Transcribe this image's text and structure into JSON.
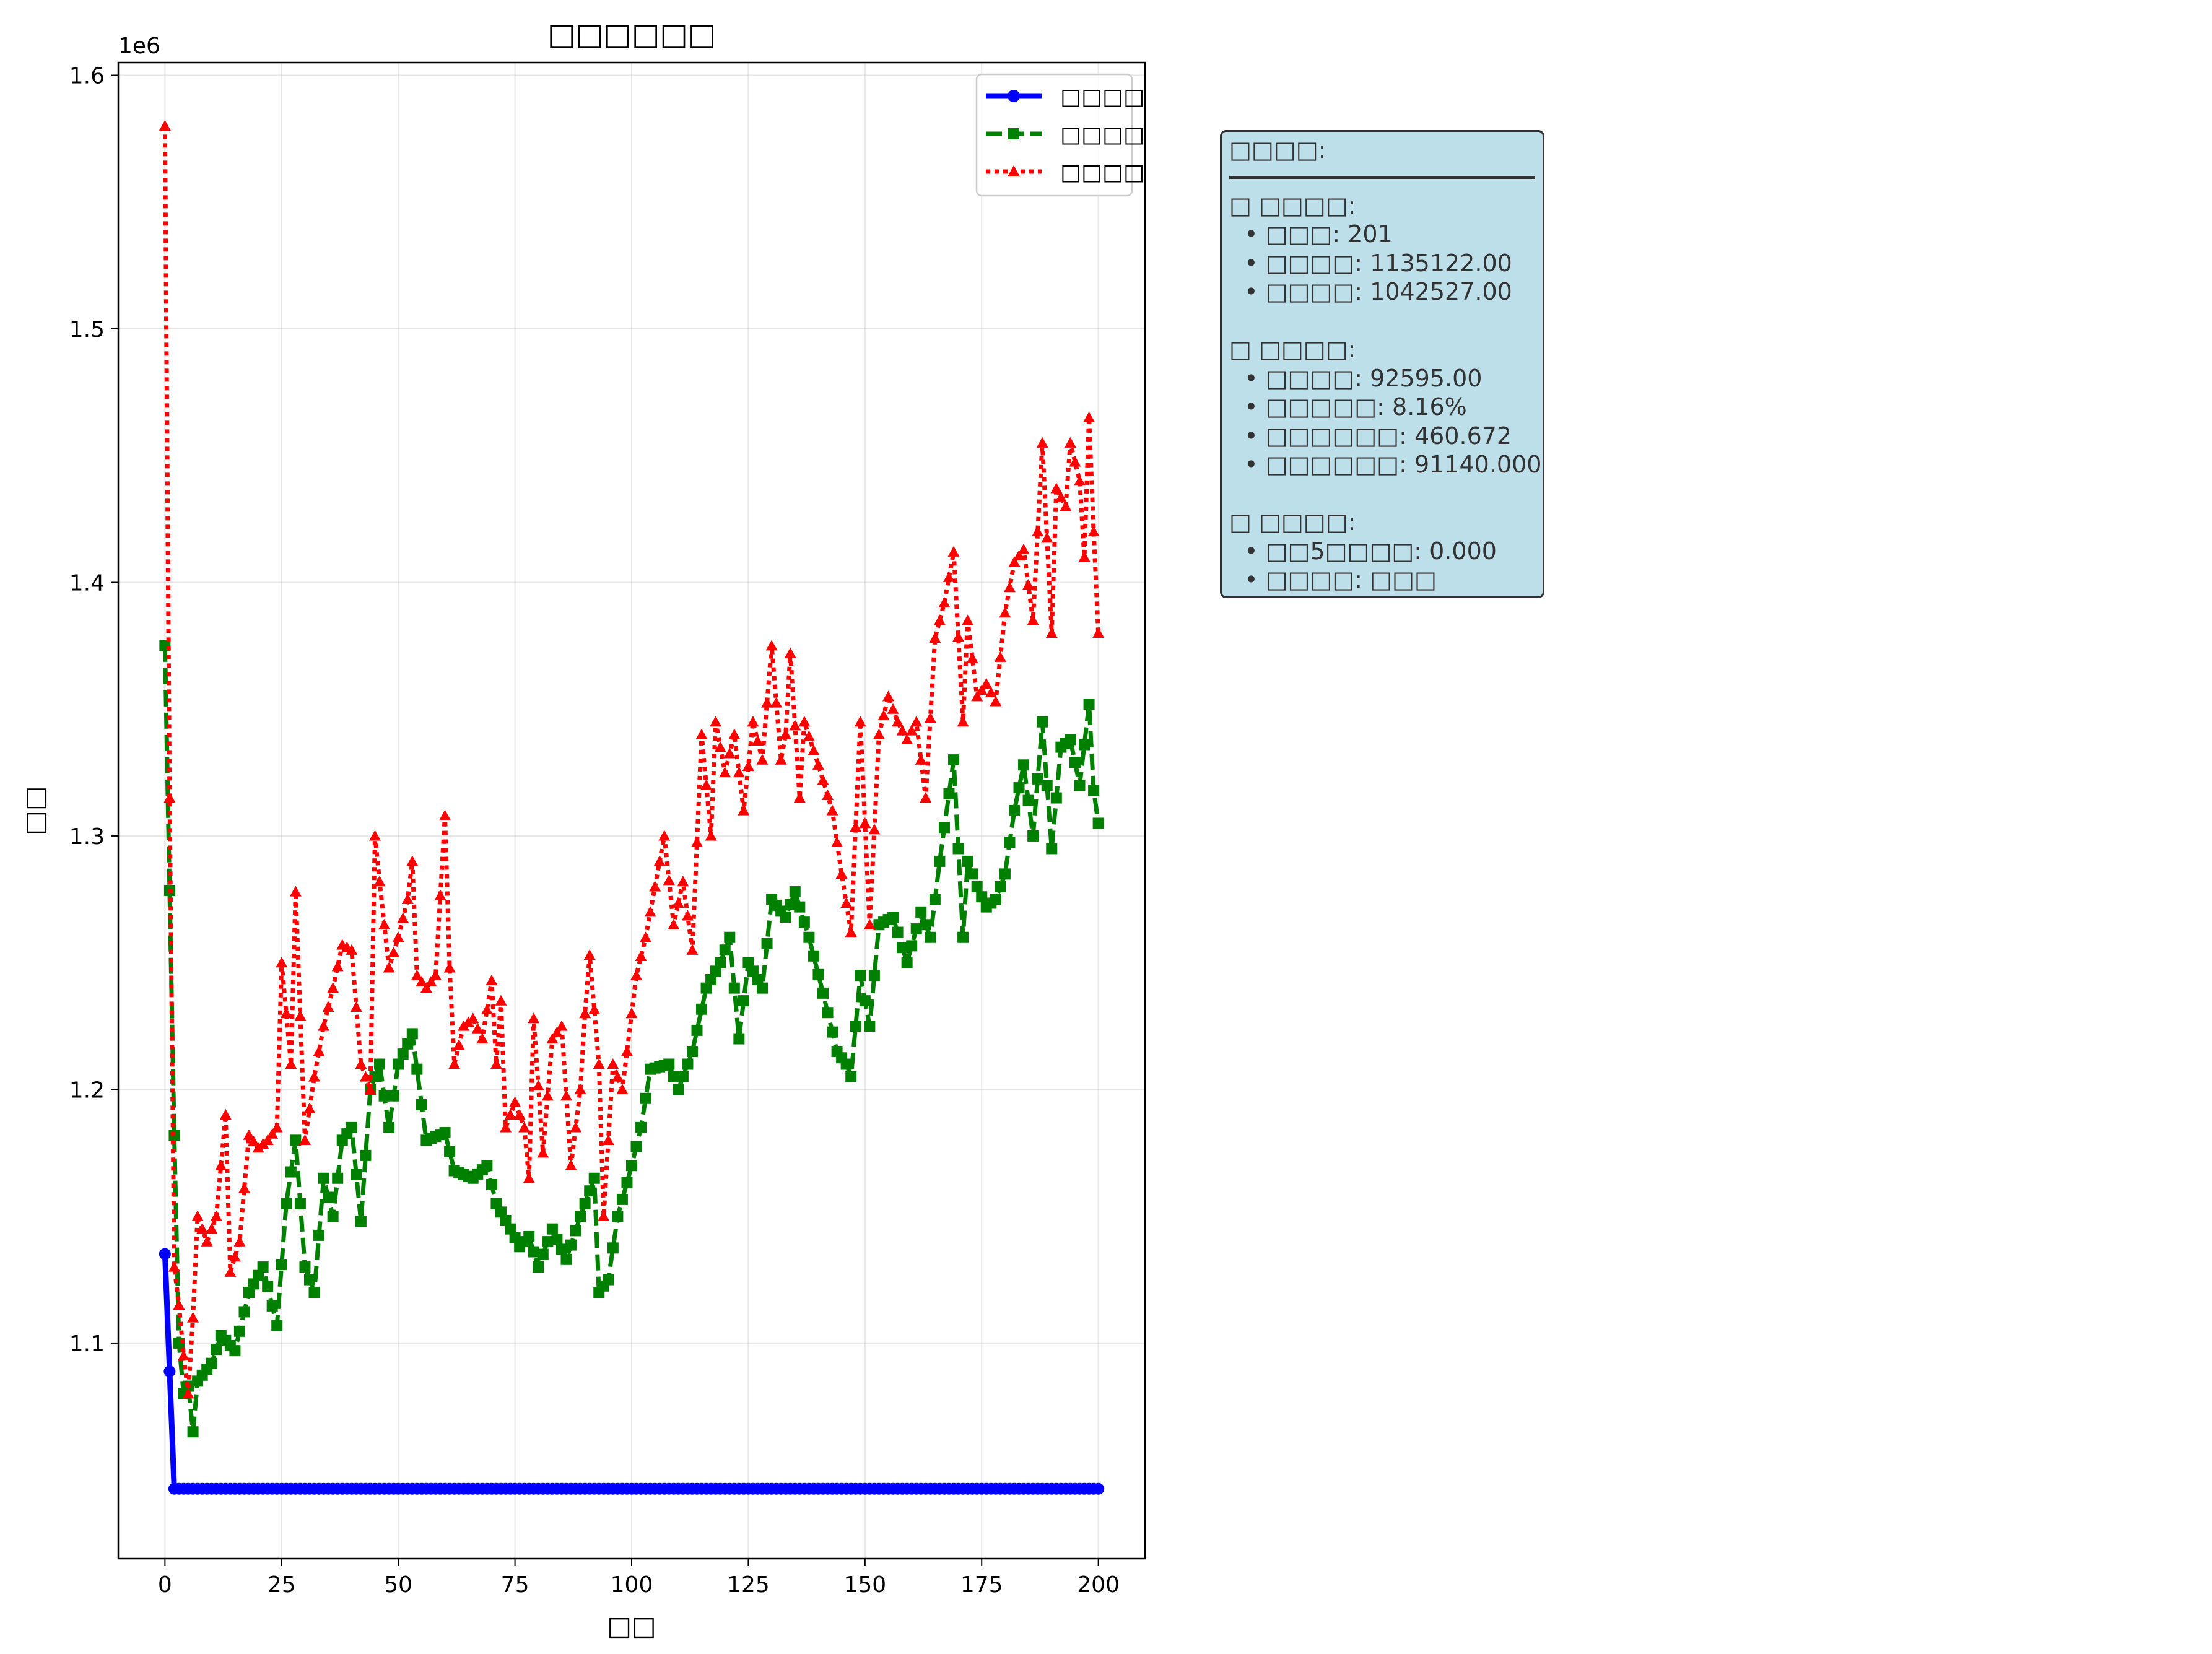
{
  "chart_data": {
    "type": "line",
    "title": "□□□□□□",
    "xlabel": "□□",
    "ylabel": "□□",
    "offset_text": "1e6",
    "xlim": [
      -10,
      210
    ],
    "ylim": [
      1015000,
      1605000
    ],
    "x_ticks": [
      0,
      25,
      50,
      75,
      100,
      125,
      150,
      175,
      200
    ],
    "x_tick_labels": [
      "0",
      "25",
      "50",
      "75",
      "100",
      "125",
      "150",
      "175",
      "200"
    ],
    "y_ticks": [
      1100000,
      1200000,
      1300000,
      1400000,
      1500000,
      1600000
    ],
    "y_tick_labels": [
      "1.1",
      "1.2",
      "1.3",
      "1.4",
      "1.5",
      "1.6"
    ],
    "grid": true,
    "legend_position": "top-right",
    "x": {
      "start": 0,
      "end": 200,
      "step": 1
    },
    "series": [
      {
        "name": "□□□□",
        "color": "#0000ff",
        "marker": "circle",
        "line_style": "solid",
        "anchors": [
          [
            0,
            1135122
          ],
          [
            2,
            1042527
          ],
          [
            200,
            1042527
          ]
        ]
      },
      {
        "name": "□□□□",
        "color": "#008000",
        "marker": "square",
        "line_style": "dashed",
        "anchors": [
          [
            0,
            1375000
          ],
          [
            2,
            1182000
          ],
          [
            3,
            1100000
          ],
          [
            4,
            1080000
          ],
          [
            5,
            1083000
          ],
          [
            6,
            1065000
          ],
          [
            7,
            1085000
          ],
          [
            10,
            1092000
          ],
          [
            12,
            1103000
          ],
          [
            15,
            1097000
          ],
          [
            18,
            1120000
          ],
          [
            21,
            1130000
          ],
          [
            24,
            1107000
          ],
          [
            26,
            1155000
          ],
          [
            28,
            1180000
          ],
          [
            30,
            1130000
          ],
          [
            32,
            1120000
          ],
          [
            34,
            1165000
          ],
          [
            36,
            1150000
          ],
          [
            38,
            1180000
          ],
          [
            40,
            1185000
          ],
          [
            42,
            1148000
          ],
          [
            44,
            1200000
          ],
          [
            46,
            1210000
          ],
          [
            48,
            1185000
          ],
          [
            50,
            1210000
          ],
          [
            53,
            1222000
          ],
          [
            56,
            1180000
          ],
          [
            60,
            1183000
          ],
          [
            62,
            1168000
          ],
          [
            66,
            1165000
          ],
          [
            69,
            1170000
          ],
          [
            71,
            1155000
          ],
          [
            74,
            1145000
          ],
          [
            76,
            1138000
          ],
          [
            78,
            1142000
          ],
          [
            80,
            1130000
          ],
          [
            83,
            1145000
          ],
          [
            86,
            1133000
          ],
          [
            89,
            1150000
          ],
          [
            92,
            1165000
          ],
          [
            93,
            1120000
          ],
          [
            95,
            1125000
          ],
          [
            97,
            1150000
          ],
          [
            100,
            1170000
          ],
          [
            102,
            1185000
          ],
          [
            104,
            1208000
          ],
          [
            108,
            1210000
          ],
          [
            110,
            1200000
          ],
          [
            113,
            1215000
          ],
          [
            116,
            1240000
          ],
          [
            119,
            1250000
          ],
          [
            121,
            1260000
          ],
          [
            123,
            1220000
          ],
          [
            125,
            1250000
          ],
          [
            128,
            1240000
          ],
          [
            130,
            1275000
          ],
          [
            133,
            1268000
          ],
          [
            135,
            1278000
          ],
          [
            138,
            1260000
          ],
          [
            141,
            1238000
          ],
          [
            144,
            1215000
          ],
          [
            146,
            1210000
          ],
          [
            147,
            1205000
          ],
          [
            149,
            1245000
          ],
          [
            151,
            1225000
          ],
          [
            153,
            1265000
          ],
          [
            156,
            1268000
          ],
          [
            159,
            1250000
          ],
          [
            162,
            1270000
          ],
          [
            164,
            1260000
          ],
          [
            166,
            1290000
          ],
          [
            169,
            1330000
          ],
          [
            171,
            1260000
          ],
          [
            172,
            1290000
          ],
          [
            174,
            1280000
          ],
          [
            176,
            1272000
          ],
          [
            178,
            1275000
          ],
          [
            180,
            1285000
          ],
          [
            182,
            1310000
          ],
          [
            184,
            1328000
          ],
          [
            186,
            1300000
          ],
          [
            188,
            1345000
          ],
          [
            190,
            1295000
          ],
          [
            192,
            1335000
          ],
          [
            194,
            1338000
          ],
          [
            196,
            1320000
          ],
          [
            198,
            1352000
          ],
          [
            199,
            1318000
          ],
          [
            200,
            1305000
          ]
        ]
      },
      {
        "name": "□□□□",
        "color": "#ff0000",
        "marker": "triangle",
        "line_style": "dotted",
        "anchors": [
          [
            0,
            1580000
          ],
          [
            1,
            1315000
          ],
          [
            2,
            1130000
          ],
          [
            3,
            1115000
          ],
          [
            4,
            1095000
          ],
          [
            5,
            1080000
          ],
          [
            6,
            1110000
          ],
          [
            7,
            1150000
          ],
          [
            9,
            1140000
          ],
          [
            11,
            1150000
          ],
          [
            13,
            1190000
          ],
          [
            14,
            1128000
          ],
          [
            16,
            1140000
          ],
          [
            18,
            1182000
          ],
          [
            20,
            1177000
          ],
          [
            22,
            1180000
          ],
          [
            24,
            1185000
          ],
          [
            25,
            1250000
          ],
          [
            27,
            1210000
          ],
          [
            28,
            1278000
          ],
          [
            30,
            1180000
          ],
          [
            32,
            1205000
          ],
          [
            34,
            1225000
          ],
          [
            36,
            1240000
          ],
          [
            38,
            1257000
          ],
          [
            40,
            1255000
          ],
          [
            42,
            1210000
          ],
          [
            44,
            1200000
          ],
          [
            45,
            1300000
          ],
          [
            46,
            1282000
          ],
          [
            48,
            1248000
          ],
          [
            50,
            1260000
          ],
          [
            52,
            1275000
          ],
          [
            53,
            1290000
          ],
          [
            54,
            1245000
          ],
          [
            56,
            1240000
          ],
          [
            58,
            1245000
          ],
          [
            60,
            1308000
          ],
          [
            61,
            1248000
          ],
          [
            62,
            1210000
          ],
          [
            64,
            1225000
          ],
          [
            66,
            1228000
          ],
          [
            68,
            1220000
          ],
          [
            70,
            1243000
          ],
          [
            71,
            1210000
          ],
          [
            72,
            1235000
          ],
          [
            73,
            1185000
          ],
          [
            75,
            1195000
          ],
          [
            77,
            1185000
          ],
          [
            78,
            1165000
          ],
          [
            79,
            1228000
          ],
          [
            81,
            1175000
          ],
          [
            83,
            1220000
          ],
          [
            85,
            1225000
          ],
          [
            87,
            1170000
          ],
          [
            89,
            1200000
          ],
          [
            90,
            1230000
          ],
          [
            91,
            1253000
          ],
          [
            93,
            1210000
          ],
          [
            94,
            1150000
          ],
          [
            96,
            1210000
          ],
          [
            98,
            1200000
          ],
          [
            99,
            1215000
          ],
          [
            101,
            1245000
          ],
          [
            103,
            1260000
          ],
          [
            105,
            1280000
          ],
          [
            107,
            1300000
          ],
          [
            109,
            1265000
          ],
          [
            111,
            1282000
          ],
          [
            113,
            1255000
          ],
          [
            115,
            1340000
          ],
          [
            117,
            1300000
          ],
          [
            118,
            1345000
          ],
          [
            120,
            1325000
          ],
          [
            122,
            1340000
          ],
          [
            124,
            1310000
          ],
          [
            126,
            1345000
          ],
          [
            128,
            1330000
          ],
          [
            130,
            1375000
          ],
          [
            132,
            1330000
          ],
          [
            133,
            1340000
          ],
          [
            134,
            1372000
          ],
          [
            136,
            1315000
          ],
          [
            137,
            1345000
          ],
          [
            140,
            1328000
          ],
          [
            143,
            1310000
          ],
          [
            145,
            1285000
          ],
          [
            147,
            1262000
          ],
          [
            149,
            1345000
          ],
          [
            151,
            1265000
          ],
          [
            153,
            1340000
          ],
          [
            155,
            1355000
          ],
          [
            157,
            1345000
          ],
          [
            159,
            1338000
          ],
          [
            161,
            1345000
          ],
          [
            163,
            1315000
          ],
          [
            165,
            1378000
          ],
          [
            167,
            1392000
          ],
          [
            169,
            1412000
          ],
          [
            171,
            1345000
          ],
          [
            172,
            1385000
          ],
          [
            174,
            1355000
          ],
          [
            176,
            1360000
          ],
          [
            178,
            1353000
          ],
          [
            180,
            1388000
          ],
          [
            182,
            1408000
          ],
          [
            184,
            1413000
          ],
          [
            186,
            1385000
          ],
          [
            188,
            1455000
          ],
          [
            190,
            1380000
          ],
          [
            191,
            1437000
          ],
          [
            193,
            1430000
          ],
          [
            194,
            1455000
          ],
          [
            196,
            1440000
          ],
          [
            197,
            1410000
          ],
          [
            198,
            1465000
          ],
          [
            199,
            1420000
          ],
          [
            200,
            1380000
          ]
        ]
      }
    ]
  },
  "info_panel": {
    "title": "□□□□:",
    "section1": {
      "heading": "□ □□□□:",
      "lines": [
        "  • □□□: 201",
        "  • □□□□: 1135122.00",
        "  • □□□□: 1042527.00"
      ]
    },
    "section2": {
      "heading": "□ □□□□:",
      "lines": [
        "  • □□□□: 92595.00",
        "  • □□□□□: 8.16%",
        "  • □□□□□□: 460.672",
        "  • □□□□□□: 91140.000"
      ]
    },
    "section3": {
      "heading": "□ □□□□:",
      "lines": [
        "  • □□5□□□□: 0.000",
        "  • □□□□: □□□"
      ]
    }
  }
}
